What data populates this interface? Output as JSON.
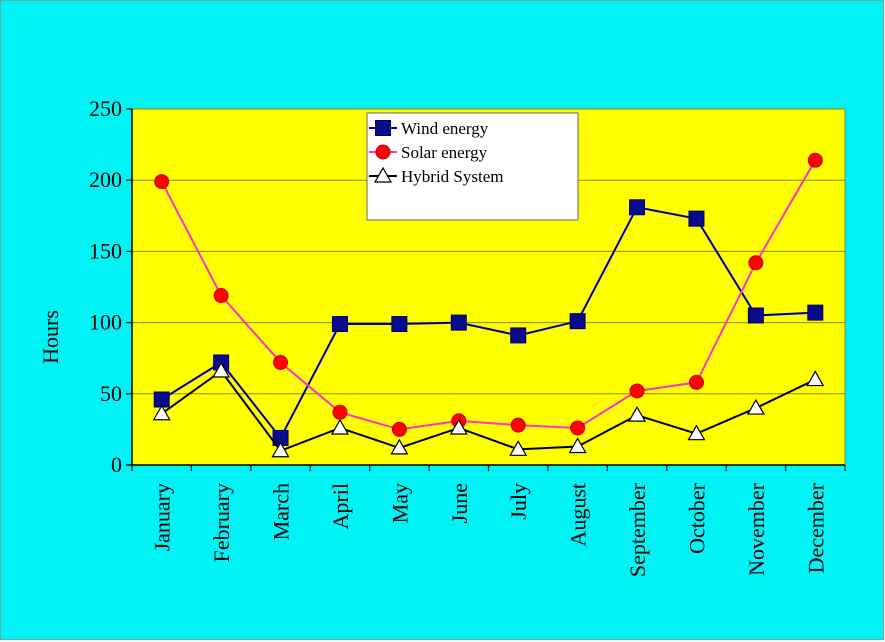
{
  "colors": {
    "background": "#00F2F5",
    "plot_area": "#FFFF00",
    "gridline": "#8a8a00",
    "wind_line": "#0000AA",
    "wind_marker": "#0A0A8C",
    "solar_line": "#FF33CC",
    "solar_marker": "#FF0000",
    "hybrid_line": "#000000"
  },
  "chart_data": {
    "type": "line",
    "title": "",
    "xlabel": "",
    "ylabel": "Hours",
    "ylim": [
      0,
      250
    ],
    "yticks": [
      0,
      50,
      100,
      150,
      200,
      250
    ],
    "grid": "horizontal",
    "legend_position": "top-center",
    "categories": [
      "January",
      "February",
      "March",
      "April",
      "May",
      "June",
      "July",
      "August",
      "September",
      "October",
      "November",
      "December"
    ],
    "series": [
      {
        "name": "Wind energy",
        "marker": "square",
        "values": [
          46,
          72,
          19,
          99,
          99,
          100,
          91,
          101,
          181,
          173,
          105,
          107
        ]
      },
      {
        "name": "Solar energy",
        "marker": "circle",
        "values": [
          199,
          119,
          72,
          37,
          25,
          31,
          28,
          26,
          52,
          58,
          142,
          214
        ]
      },
      {
        "name": "Hybrid System",
        "marker": "triangle",
        "values": [
          36,
          66,
          10,
          26,
          12,
          26,
          11,
          13,
          35,
          22,
          40,
          60
        ]
      }
    ]
  }
}
